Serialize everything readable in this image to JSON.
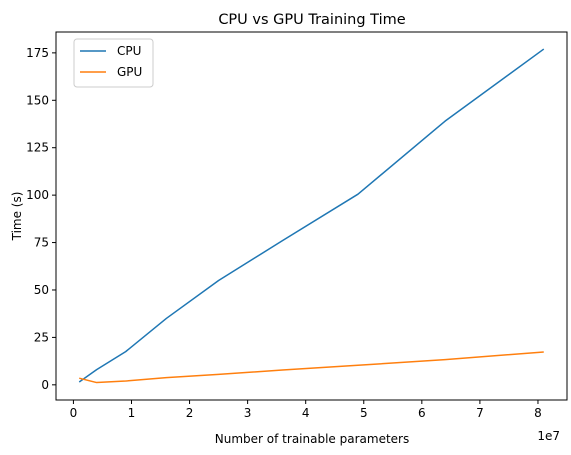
{
  "chart_data": {
    "type": "line",
    "title": "CPU vs GPU Training Time",
    "xlabel": "Number of trainable parameters",
    "ylabel": "Time (s)",
    "x_offset_label": "1e7",
    "xlim": [
      -0.3,
      8.5
    ],
    "ylim": [
      -8,
      186
    ],
    "x_ticks": [
      0,
      1,
      2,
      3,
      4,
      5,
      6,
      7,
      8
    ],
    "x_tick_labels": [
      "0",
      "1",
      "2",
      "3",
      "4",
      "5",
      "6",
      "7",
      "8"
    ],
    "y_ticks": [
      0,
      25,
      50,
      75,
      100,
      125,
      150,
      175
    ],
    "y_tick_labels": [
      "0",
      "25",
      "50",
      "75",
      "100",
      "125",
      "150",
      "175"
    ],
    "grid": false,
    "legend_position": "top-left",
    "series": [
      {
        "name": "CPU",
        "color": "#1f77b4",
        "x": [
          0.1,
          0.4,
          0.9,
          1.6,
          2.5,
          3.6,
          4.9,
          6.4,
          8.1
        ],
        "y": [
          1.5,
          8,
          17.5,
          35,
          55,
          76,
          100.5,
          139,
          177
        ]
      },
      {
        "name": "GPU",
        "color": "#ff7f0e",
        "x": [
          0.1,
          0.4,
          0.9,
          1.6,
          2.5,
          3.6,
          4.9,
          6.4,
          8.1
        ],
        "y": [
          3.5,
          1.2,
          2,
          3.8,
          5.5,
          7.8,
          10.3,
          13.3,
          17.3
        ]
      }
    ]
  }
}
